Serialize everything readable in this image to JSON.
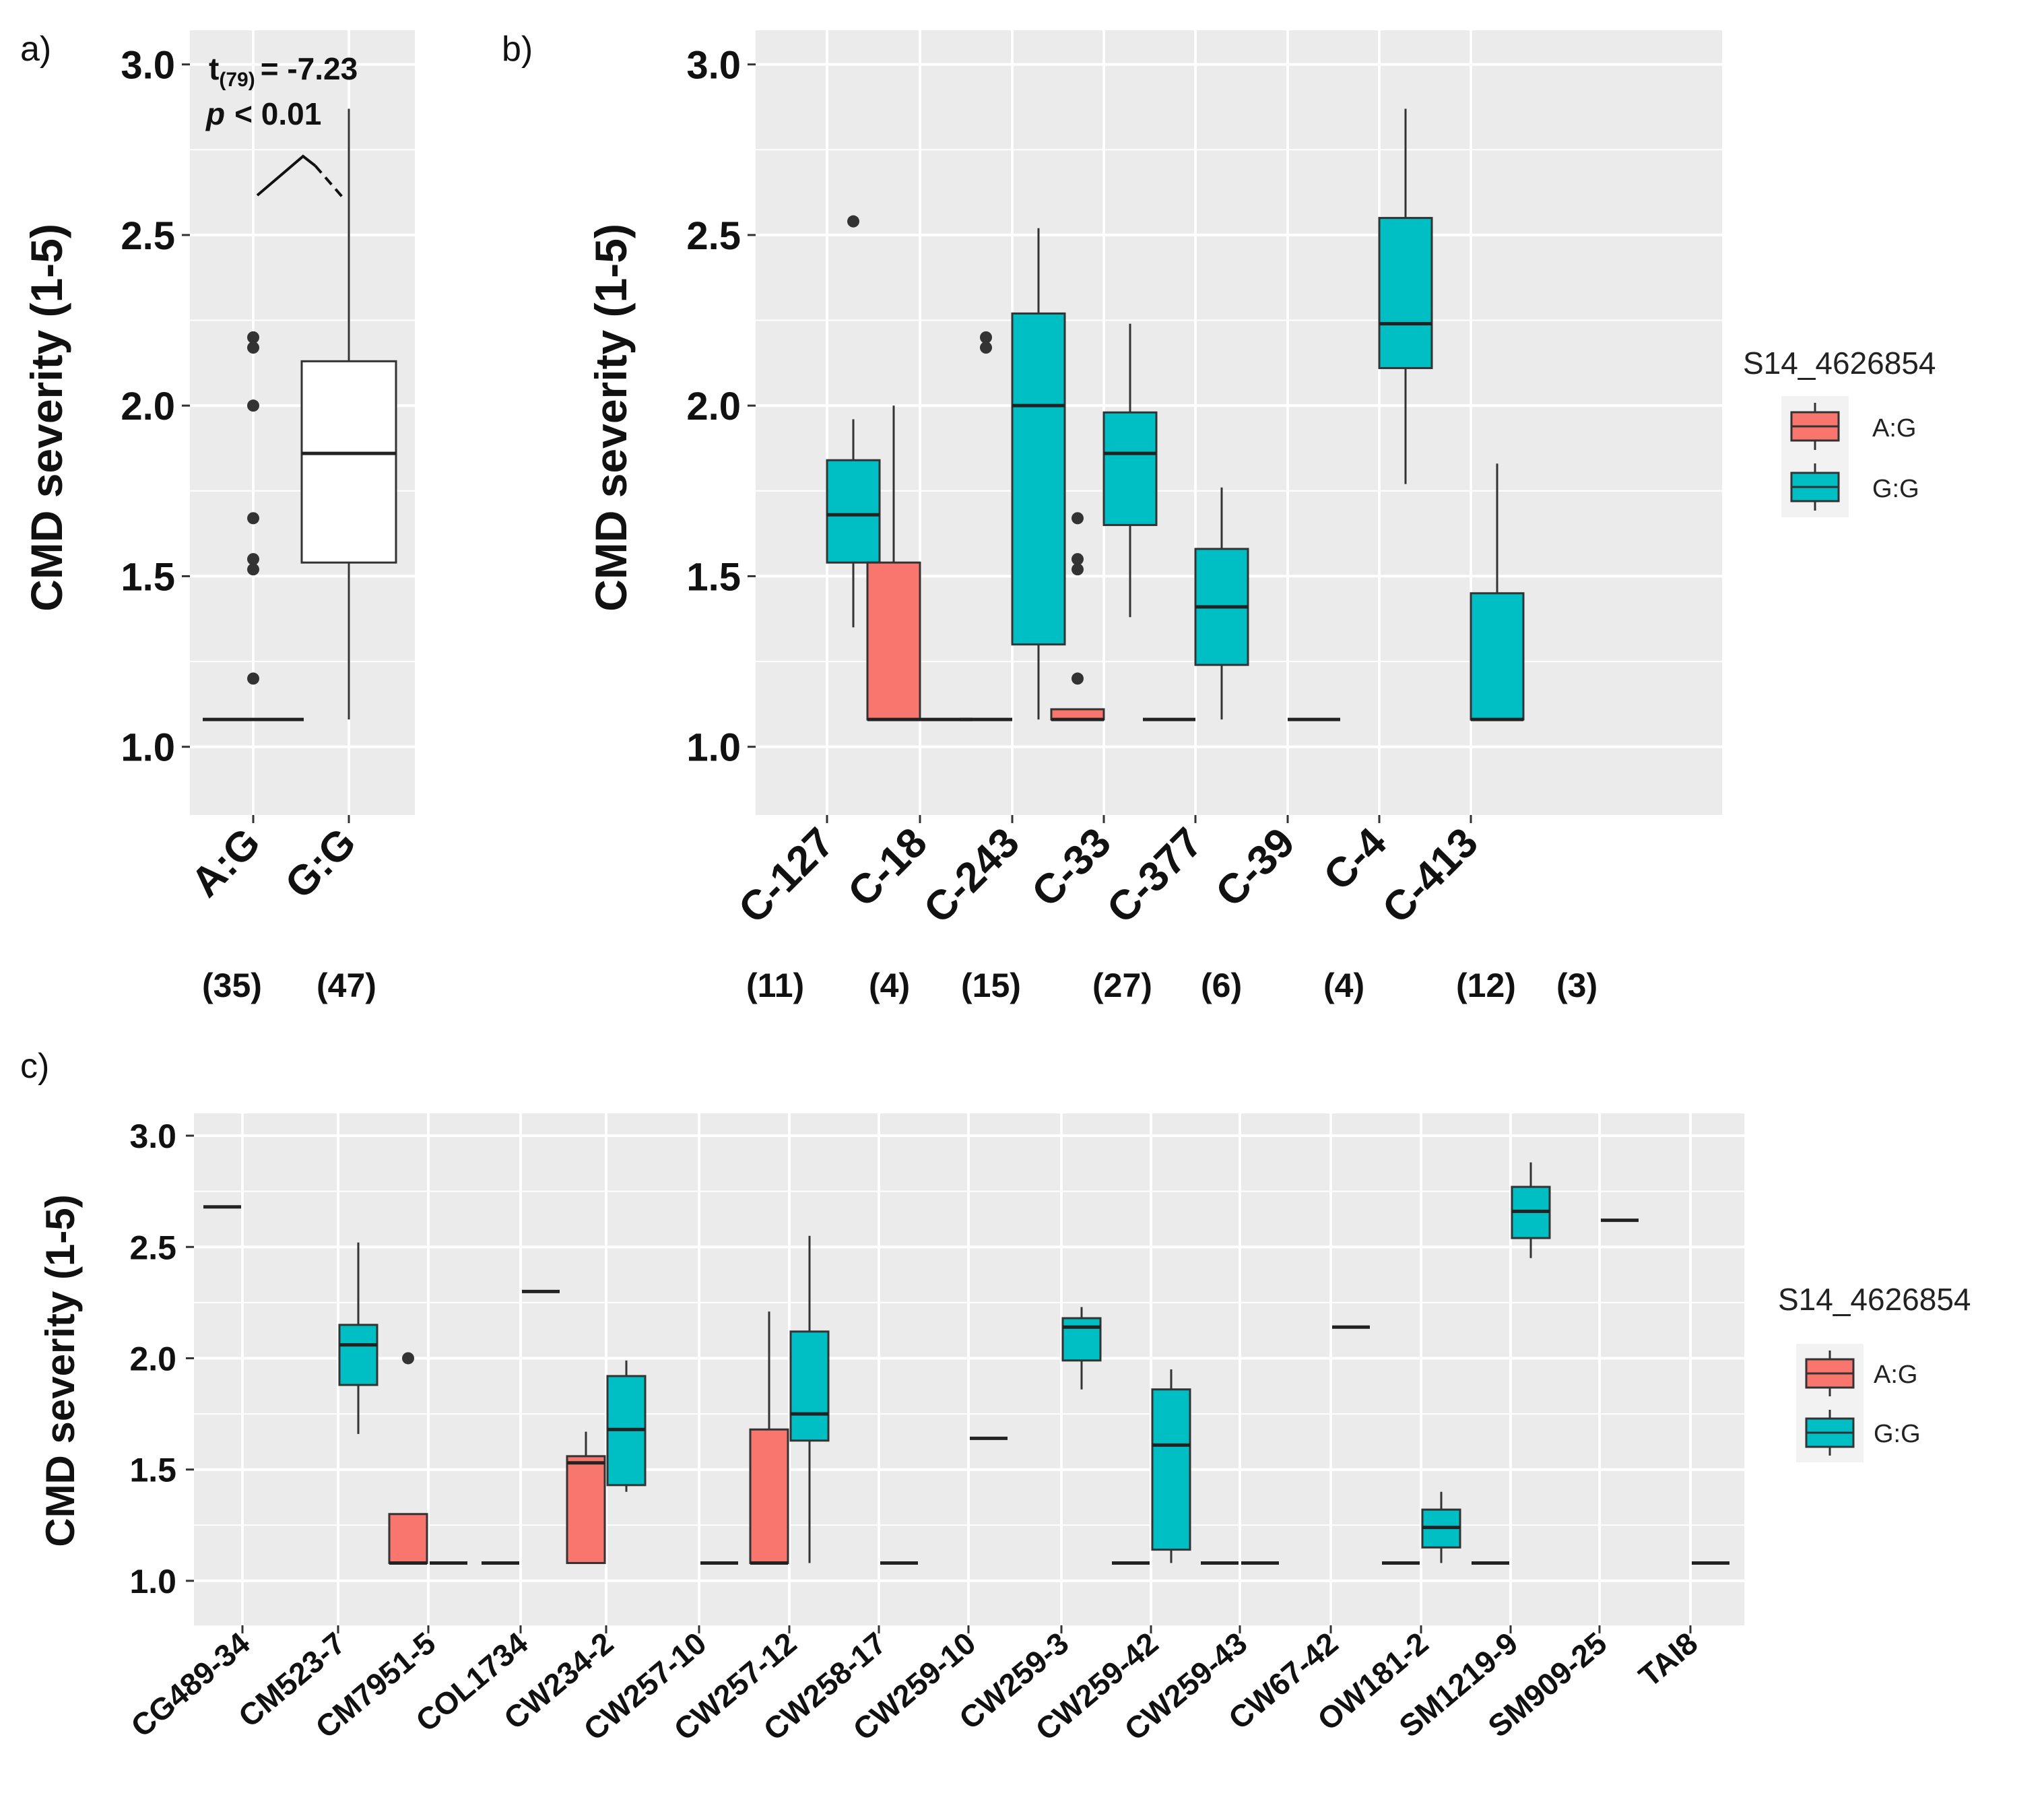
{
  "figure": {
    "labels": {
      "a": "a)",
      "b": "b)",
      "c": "c)"
    },
    "colors": {
      "panel_bg": "#EBEBEB",
      "grid": "#FFFFFF",
      "AG": "#F8766D",
      "GG": "#00BFC4",
      "white_box": "#FFFFFF",
      "line": "#333333"
    }
  },
  "chart_data": [
    {
      "panel": "a",
      "type": "box",
      "ylabel": "CMD severity (1-5)",
      "ylim": [
        0.8,
        3.1
      ],
      "yticks": [
        "1.0",
        "1.5",
        "2.0",
        "2.5",
        "3.0"
      ],
      "categories": [
        "A:G",
        "G:G"
      ],
      "counts": [
        "(35)",
        "(47)"
      ],
      "annotation": {
        "stat": "t",
        "sub": "(79)",
        "stat_value": "= -7.23",
        "p": "p",
        "p_value": "< 0.01"
      },
      "boxes": [
        {
          "category": "A:G",
          "min": 1.08,
          "q1": 1.08,
          "median": 1.08,
          "q3": 1.08,
          "max": 1.08,
          "outliers": [
            1.2,
            1.52,
            1.55,
            1.67,
            2.0,
            2.17,
            2.2
          ],
          "fill": "white"
        },
        {
          "category": "G:G",
          "min": 1.08,
          "q1": 1.54,
          "median": 1.86,
          "q3": 2.13,
          "max": 2.87,
          "outliers": [],
          "fill": "white"
        }
      ]
    },
    {
      "panel": "b",
      "type": "box",
      "ylabel": "CMD severity (1-5)",
      "ylim": [
        0.8,
        3.1
      ],
      "yticks": [
        "1.0",
        "1.5",
        "2.0",
        "2.5",
        "3.0"
      ],
      "categories": [
        "C-127",
        "C-18",
        "C-243",
        "C-33",
        "C-377",
        "C-39",
        "C-4",
        "C-413"
      ],
      "counts": [
        "(11)",
        "(4)",
        "(15)",
        "(27)",
        "(6)",
        "(4)",
        "(12)",
        "(3)"
      ],
      "legend": {
        "title": "S14_4626854",
        "items": [
          "A:G",
          "G:G"
        ]
      },
      "boxes": [
        {
          "category": "C-127",
          "group": "G:G",
          "min": 1.35,
          "q1": 1.54,
          "median": 1.68,
          "q3": 1.84,
          "max": 1.96,
          "outliers": [
            2.54
          ]
        },
        {
          "category": "C-18",
          "group": "A:G",
          "min": 1.08,
          "q1": 1.08,
          "median": 1.08,
          "q3": 1.54,
          "max": 2.0,
          "outliers": []
        },
        {
          "category": "C-18",
          "group": "G:G",
          "min": 1.08,
          "q1": 1.08,
          "median": 1.08,
          "q3": 1.08,
          "max": 1.08,
          "outliers": []
        },
        {
          "category": "C-243",
          "group": "A:G",
          "min": 1.08,
          "q1": 1.08,
          "median": 1.08,
          "q3": 1.08,
          "max": 1.08,
          "outliers": [
            2.17,
            2.2
          ]
        },
        {
          "category": "C-243",
          "group": "G:G",
          "min": 1.08,
          "q1": 1.3,
          "median": 2.0,
          "q3": 2.27,
          "max": 2.52,
          "outliers": []
        },
        {
          "category": "C-33",
          "group": "A:G",
          "min": 1.08,
          "q1": 1.08,
          "median": 1.08,
          "q3": 1.11,
          "max": 1.11,
          "outliers": [
            1.2,
            1.52,
            1.55,
            1.67
          ]
        },
        {
          "category": "C-33",
          "group": "G:G",
          "min": 1.38,
          "q1": 1.65,
          "median": 1.86,
          "q3": 1.98,
          "max": 2.24,
          "outliers": []
        },
        {
          "category": "C-377",
          "group": "A:G",
          "min": 1.08,
          "q1": 1.08,
          "median": 1.08,
          "q3": 1.08,
          "max": 1.08,
          "outliers": []
        },
        {
          "category": "C-377",
          "group": "G:G",
          "min": 1.08,
          "q1": 1.24,
          "median": 1.41,
          "q3": 1.58,
          "max": 1.76,
          "outliers": []
        },
        {
          "category": "C-39",
          "group": "G:G",
          "min": 1.08,
          "q1": 1.08,
          "median": 1.08,
          "q3": 1.08,
          "max": 1.08,
          "outliers": []
        },
        {
          "category": "C-4",
          "group": "G:G",
          "min": 1.77,
          "q1": 2.11,
          "median": 2.24,
          "q3": 2.55,
          "max": 2.87,
          "outliers": []
        },
        {
          "category": "C-413",
          "group": "G:G",
          "min": 1.08,
          "q1": 1.08,
          "median": 1.08,
          "q3": 1.45,
          "max": 1.83,
          "outliers": []
        }
      ]
    },
    {
      "panel": "c",
      "type": "box",
      "ylabel": "CMD severity (1-5)",
      "ylim": [
        0.8,
        3.1
      ],
      "yticks": [
        "1.0",
        "1.5",
        "2.0",
        "2.5",
        "3.0"
      ],
      "categories": [
        "CG489-34",
        "CM523-7",
        "CM7951-5",
        "COL1734",
        "CW234-2",
        "CW257-10",
        "CW257-12",
        "CW258-17",
        "CW259-10",
        "CW259-3",
        "CW259-42",
        "CW259-43",
        "CW67-42",
        "OW181-2",
        "SM1219-9",
        "SM909-25",
        "TAI8"
      ],
      "legend": {
        "title": "S14_4626854",
        "items": [
          "A:G",
          "G:G"
        ]
      },
      "boxes": [
        {
          "category": "CG489-34",
          "group": "A:G",
          "min": 2.68,
          "q1": 2.68,
          "median": 2.68,
          "q3": 2.68,
          "max": 2.68,
          "outliers": []
        },
        {
          "category": "CM523-7",
          "group": "G:G",
          "min": 1.66,
          "q1": 1.88,
          "median": 2.06,
          "q3": 2.15,
          "max": 2.52,
          "outliers": []
        },
        {
          "category": "CM7951-5",
          "group": "A:G",
          "min": 1.08,
          "q1": 1.08,
          "median": 1.08,
          "q3": 1.3,
          "max": 1.3,
          "outliers": [
            2.0
          ]
        },
        {
          "category": "CM7951-5",
          "group": "G:G",
          "min": 1.08,
          "q1": 1.08,
          "median": 1.08,
          "q3": 1.08,
          "max": 1.08,
          "outliers": []
        },
        {
          "category": "COL1734",
          "group": "A:G",
          "min": 1.08,
          "q1": 1.08,
          "median": 1.08,
          "q3": 1.08,
          "max": 1.08,
          "outliers": []
        },
        {
          "category": "COL1734",
          "group": "G:G",
          "min": 2.3,
          "q1": 2.3,
          "median": 2.3,
          "q3": 2.3,
          "max": 2.3,
          "outliers": []
        },
        {
          "category": "CW234-2",
          "group": "A:G",
          "min": 1.08,
          "q1": 1.08,
          "median": 1.53,
          "q3": 1.56,
          "max": 1.67,
          "outliers": []
        },
        {
          "category": "CW234-2",
          "group": "G:G",
          "min": 1.4,
          "q1": 1.43,
          "median": 1.68,
          "q3": 1.92,
          "max": 1.99,
          "outliers": []
        },
        {
          "category": "CW257-10",
          "group": "G:G",
          "min": 1.08,
          "q1": 1.08,
          "median": 1.08,
          "q3": 1.08,
          "max": 1.08,
          "outliers": []
        },
        {
          "category": "CW257-12",
          "group": "A:G",
          "min": 1.08,
          "q1": 1.08,
          "median": 1.08,
          "q3": 1.68,
          "max": 2.21,
          "outliers": []
        },
        {
          "category": "CW257-12",
          "group": "G:G",
          "min": 1.08,
          "q1": 1.63,
          "median": 1.75,
          "q3": 2.12,
          "max": 2.55,
          "outliers": []
        },
        {
          "category": "CW258-17",
          "group": "G:G",
          "min": 1.08,
          "q1": 1.08,
          "median": 1.08,
          "q3": 1.08,
          "max": 1.08,
          "outliers": []
        },
        {
          "category": "CW259-10",
          "group": "G:G",
          "min": 1.64,
          "q1": 1.64,
          "median": 1.64,
          "q3": 1.64,
          "max": 1.64,
          "outliers": []
        },
        {
          "category": "CW259-3",
          "group": "G:G",
          "min": 1.86,
          "q1": 1.99,
          "median": 2.14,
          "q3": 2.18,
          "max": 2.23,
          "outliers": []
        },
        {
          "category": "CW259-42",
          "group": "A:G",
          "min": 1.08,
          "q1": 1.08,
          "median": 1.08,
          "q3": 1.08,
          "max": 1.08,
          "outliers": []
        },
        {
          "category": "CW259-42",
          "group": "G:G",
          "min": 1.08,
          "q1": 1.14,
          "median": 1.61,
          "q3": 1.86,
          "max": 1.95,
          "outliers": []
        },
        {
          "category": "CW259-43",
          "group": "A:G",
          "min": 1.08,
          "q1": 1.08,
          "median": 1.08,
          "q3": 1.08,
          "max": 1.08,
          "outliers": []
        },
        {
          "category": "CW259-43",
          "group": "G:G",
          "min": 1.08,
          "q1": 1.08,
          "median": 1.08,
          "q3": 1.08,
          "max": 1.08,
          "outliers": []
        },
        {
          "category": "CW67-42",
          "group": "G:G",
          "min": 2.14,
          "q1": 2.14,
          "median": 2.14,
          "q3": 2.14,
          "max": 2.14,
          "outliers": []
        },
        {
          "category": "OW181-2",
          "group": "A:G",
          "min": 1.08,
          "q1": 1.08,
          "median": 1.08,
          "q3": 1.08,
          "max": 1.08,
          "outliers": []
        },
        {
          "category": "OW181-2",
          "group": "G:G",
          "min": 1.08,
          "q1": 1.15,
          "median": 1.24,
          "q3": 1.32,
          "max": 1.4,
          "outliers": []
        },
        {
          "category": "SM1219-9",
          "group": "A:G",
          "min": 1.08,
          "q1": 1.08,
          "median": 1.08,
          "q3": 1.08,
          "max": 1.08,
          "outliers": []
        },
        {
          "category": "SM1219-9",
          "group": "G:G",
          "min": 2.45,
          "q1": 2.54,
          "median": 2.66,
          "q3": 2.77,
          "max": 2.88,
          "outliers": []
        },
        {
          "category": "SM909-25",
          "group": "G:G",
          "min": 2.62,
          "q1": 2.62,
          "median": 2.62,
          "q3": 2.62,
          "max": 2.62,
          "outliers": []
        },
        {
          "category": "TAI8",
          "group": "G:G",
          "min": 1.08,
          "q1": 1.08,
          "median": 1.08,
          "q3": 1.08,
          "max": 1.08,
          "outliers": []
        }
      ]
    }
  ]
}
